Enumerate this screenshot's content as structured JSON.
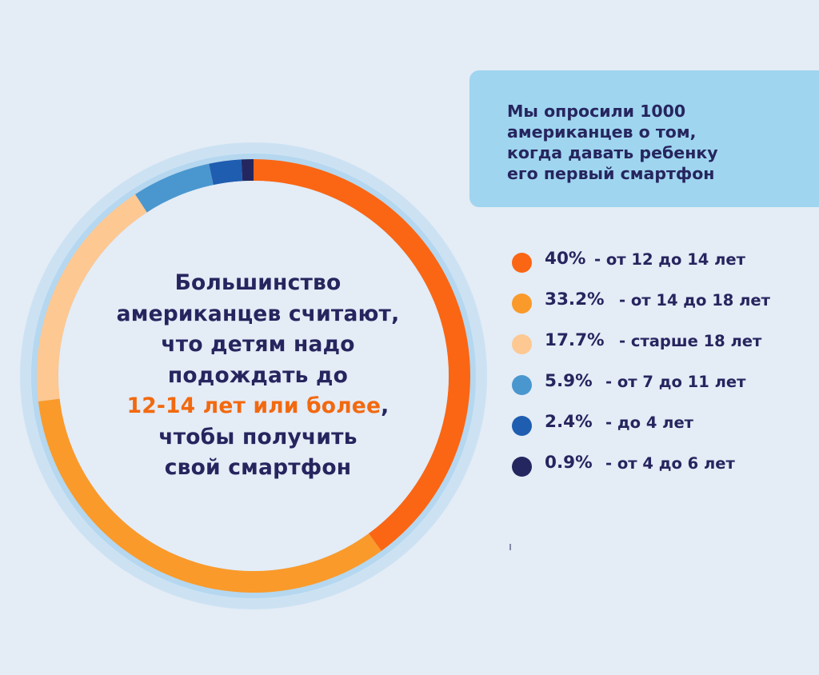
{
  "chart_data": {
    "type": "pie",
    "slices": [
      {
        "pct_label": "40%",
        "value": 40,
        "label": "- от 12 до 14 лет",
        "color": "#fa6614"
      },
      {
        "pct_label": "33.2%",
        "value": 33.2,
        "label": "- от 14 до 18 лет",
        "color": "#fa9a2a"
      },
      {
        "pct_label": "17.7%",
        "value": 17.7,
        "label": "- старше 18 лет",
        "color": "#fdc892"
      },
      {
        "pct_label": "5.9%",
        "value": 5.9,
        "label": "- от 7 до 11 лет",
        "color": "#4a97cf"
      },
      {
        "pct_label": "2.4%",
        "value": 2.4,
        "label": "- до 4 лет",
        "color": "#1f5db0"
      },
      {
        "pct_label": "0.9%",
        "value": 0.9,
        "label": "- от 4 до 6 лет",
        "color": "#24275f"
      }
    ],
    "legend_position": "right"
  },
  "center_text": {
    "line1": "Большинство",
    "line2": "американцев считают,",
    "line3": "что детям надо",
    "line4": "подождать до",
    "highlight": "12-14 лет или более",
    "line5_suffix": ",",
    "line6": "чтобы получить",
    "line7": "свой смартфон"
  },
  "info_box": {
    "lines": [
      "Мы опросили 1000",
      "американцев о том,",
      "когда давать ребенку",
      "его первый смартфон"
    ]
  },
  "colors": {
    "background": "#e4ecf6",
    "halo": "#b9d8ee",
    "text": "#26255e",
    "accent": "#f2690f",
    "info_box": "#9fd5ef"
  }
}
